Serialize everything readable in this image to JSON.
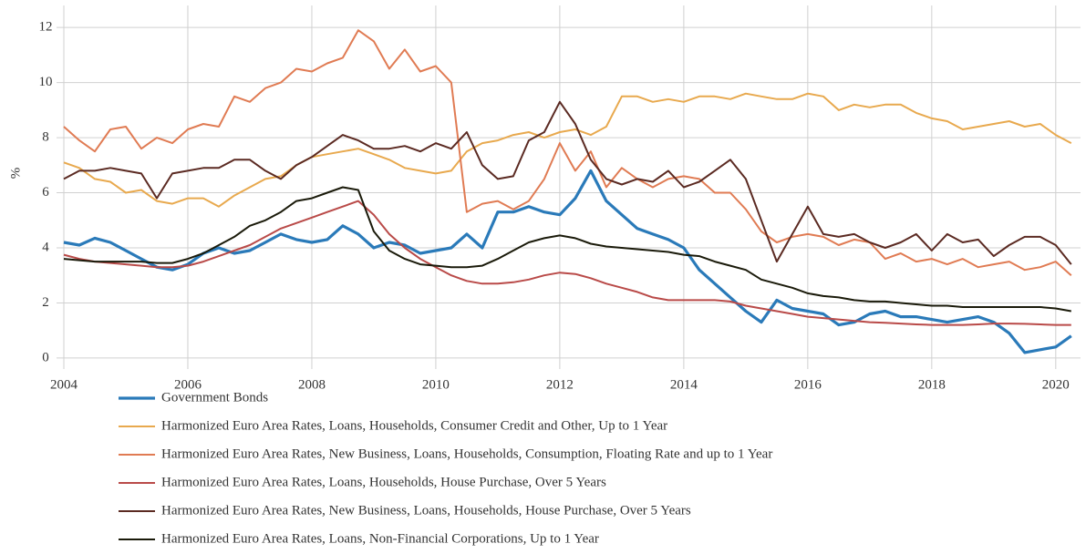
{
  "chart_data": {
    "type": "line",
    "y_label": "%",
    "x": [
      2004,
      2004.25,
      2004.5,
      2004.75,
      2005,
      2005.25,
      2005.5,
      2005.75,
      2006,
      2006.25,
      2006.5,
      2006.75,
      2007,
      2007.25,
      2007.5,
      2007.75,
      2008,
      2008.25,
      2008.5,
      2008.75,
      2009,
      2009.25,
      2009.5,
      2009.75,
      2010,
      2010.25,
      2010.5,
      2010.75,
      2011,
      2011.25,
      2011.5,
      2011.75,
      2012,
      2012.25,
      2012.5,
      2012.75,
      2013,
      2013.25,
      2013.5,
      2013.75,
      2014,
      2014.25,
      2014.5,
      2014.75,
      2015,
      2015.25,
      2015.5,
      2015.75,
      2016,
      2016.25,
      2016.5,
      2016.75,
      2017,
      2017.25,
      2017.5,
      2017.75,
      2018,
      2018.25,
      2018.5,
      2018.75,
      2019,
      2019.25,
      2019.5,
      2019.75,
      2020,
      2020.25
    ],
    "xlim": [
      2004,
      2020.4
    ],
    "xticks": [
      2004,
      2006,
      2008,
      2010,
      2012,
      2014,
      2016,
      2018,
      2020
    ],
    "ylim": [
      -0.4,
      12.8
    ],
    "yticks": [
      0,
      2,
      4,
      6,
      8,
      10,
      12
    ],
    "grid": true,
    "series": [
      {
        "name": "Government Bonds",
        "color": "#2a7ab9",
        "values": [
          4.2,
          4.1,
          4.35,
          4.2,
          3.9,
          3.6,
          3.3,
          3.2,
          3.4,
          3.8,
          4.0,
          3.8,
          3.9,
          4.2,
          4.5,
          4.3,
          4.2,
          4.3,
          4.8,
          4.5,
          4.0,
          4.2,
          4.1,
          3.8,
          3.9,
          4.0,
          4.5,
          4.0,
          5.3,
          5.3,
          5.5,
          5.3,
          5.2,
          5.8,
          6.8,
          5.7,
          5.2,
          4.7,
          4.5,
          4.3,
          4.0,
          3.2,
          2.7,
          2.2,
          1.7,
          1.3,
          2.1,
          1.8,
          1.7,
          1.6,
          1.2,
          1.3,
          1.6,
          1.7,
          1.5,
          1.5,
          1.4,
          1.3,
          1.4,
          1.5,
          1.3,
          0.9,
          0.2,
          0.3,
          0.4,
          0.8
        ]
      },
      {
        "name": "Harmonized Euro Area Rates, Loans, Households, Consumer Credit and Other, Up to 1 Year",
        "color": "#e8a94e",
        "values": [
          7.1,
          6.9,
          6.5,
          6.4,
          6.0,
          6.1,
          5.7,
          5.6,
          5.8,
          5.8,
          5.5,
          5.9,
          6.2,
          6.5,
          6.6,
          7.0,
          7.3,
          7.4,
          7.5,
          7.6,
          7.4,
          7.2,
          6.9,
          6.8,
          6.7,
          6.8,
          7.5,
          7.8,
          7.9,
          8.1,
          8.2,
          8.0,
          8.2,
          8.3,
          8.1,
          8.4,
          9.5,
          9.5,
          9.3,
          9.4,
          9.3,
          9.5,
          9.5,
          9.4,
          9.6,
          9.5,
          9.4,
          9.4,
          9.6,
          9.5,
          9.0,
          9.2,
          9.1,
          9.2,
          9.2,
          8.9,
          8.7,
          8.6,
          8.3,
          8.4,
          8.5,
          8.6,
          8.4,
          8.5,
          8.1,
          7.8
        ]
      },
      {
        "name": "Harmonized Euro Area Rates, New Business, Loans, Households, Consumption, Floating Rate and up to 1 Year",
        "color": "#e07b53",
        "values": [
          8.4,
          7.9,
          7.5,
          8.3,
          8.4,
          7.6,
          8.0,
          7.8,
          8.3,
          8.5,
          8.4,
          9.5,
          9.3,
          9.8,
          10.0,
          10.5,
          10.4,
          10.7,
          10.9,
          11.9,
          11.5,
          10.5,
          11.2,
          10.4,
          10.6,
          10.0,
          5.3,
          5.6,
          5.7,
          5.4,
          5.7,
          6.5,
          7.8,
          6.8,
          7.5,
          6.2,
          6.9,
          6.5,
          6.2,
          6.5,
          6.6,
          6.5,
          6.0,
          6.0,
          5.4,
          4.6,
          4.2,
          4.4,
          4.5,
          4.4,
          4.1,
          4.3,
          4.2,
          3.6,
          3.8,
          3.5,
          3.6,
          3.4,
          3.6,
          3.3,
          3.4,
          3.5,
          3.2,
          3.3,
          3.5,
          3.0
        ]
      },
      {
        "name": "Harmonized Euro Area Rates, Loans, Households, House Purchase, Over 5 Years",
        "color": "#b94a48",
        "values": [
          3.75,
          3.6,
          3.5,
          3.45,
          3.4,
          3.35,
          3.3,
          3.3,
          3.35,
          3.5,
          3.7,
          3.9,
          4.1,
          4.4,
          4.7,
          4.9,
          5.1,
          5.3,
          5.5,
          5.7,
          5.2,
          4.5,
          4.0,
          3.6,
          3.3,
          3.0,
          2.8,
          2.7,
          2.7,
          2.75,
          2.85,
          3.0,
          3.1,
          3.05,
          2.9,
          2.7,
          2.55,
          2.4,
          2.2,
          2.1,
          2.1,
          2.1,
          2.1,
          2.05,
          1.9,
          1.8,
          1.7,
          1.6,
          1.5,
          1.45,
          1.4,
          1.35,
          1.3,
          1.28,
          1.25,
          1.22,
          1.2,
          1.2,
          1.2,
          1.22,
          1.25,
          1.25,
          1.24,
          1.22,
          1.2,
          1.2
        ]
      },
      {
        "name": "Harmonized Euro Area Rates, New Business, Loans, Households, House Purchase, Over 5 Years",
        "color": "#5b2a22",
        "values": [
          6.5,
          6.8,
          6.8,
          6.9,
          6.8,
          6.7,
          5.8,
          6.7,
          6.8,
          6.9,
          6.9,
          7.2,
          7.2,
          6.8,
          6.5,
          7.0,
          7.3,
          7.7,
          8.1,
          7.9,
          7.6,
          7.6,
          7.7,
          7.5,
          7.8,
          7.6,
          8.2,
          7.0,
          6.5,
          6.6,
          7.9,
          8.2,
          9.3,
          8.5,
          7.2,
          6.5,
          6.3,
          6.5,
          6.4,
          6.8,
          6.2,
          6.4,
          6.8,
          7.2,
          6.5,
          5.0,
          3.5,
          4.5,
          5.5,
          4.5,
          4.4,
          4.5,
          4.2,
          4.0,
          4.2,
          4.5,
          3.9,
          4.5,
          4.2,
          4.3,
          3.7,
          4.1,
          4.4,
          4.4,
          4.1,
          3.4
        ]
      },
      {
        "name": "Harmonized Euro Area Rates, Loans, Non-Financial Corporations, Up to 1 Year",
        "color": "#1a1a0a",
        "values": [
          3.6,
          3.55,
          3.5,
          3.5,
          3.5,
          3.5,
          3.45,
          3.45,
          3.6,
          3.8,
          4.1,
          4.4,
          4.8,
          5.0,
          5.3,
          5.7,
          5.8,
          6.0,
          6.2,
          6.1,
          4.6,
          3.9,
          3.6,
          3.4,
          3.35,
          3.3,
          3.3,
          3.35,
          3.6,
          3.9,
          4.2,
          4.35,
          4.45,
          4.35,
          4.15,
          4.05,
          4.0,
          3.95,
          3.9,
          3.85,
          3.75,
          3.7,
          3.5,
          3.35,
          3.2,
          2.85,
          2.7,
          2.55,
          2.35,
          2.25,
          2.2,
          2.1,
          2.05,
          2.05,
          2.0,
          1.95,
          1.9,
          1.9,
          1.85,
          1.85,
          1.85,
          1.85,
          1.85,
          1.85,
          1.8,
          1.7
        ]
      }
    ]
  }
}
